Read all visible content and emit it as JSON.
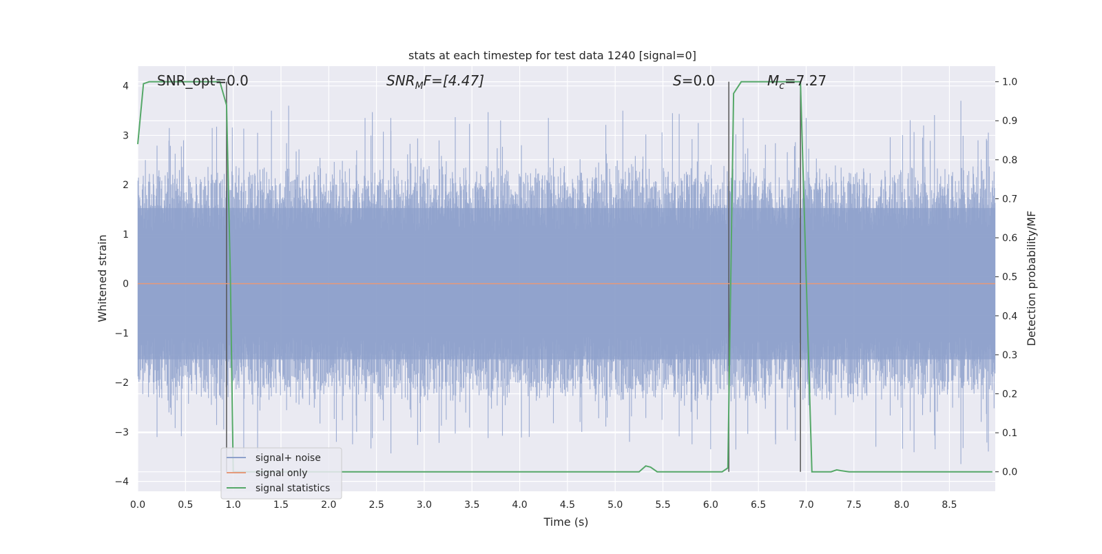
{
  "chart_data": {
    "type": "line",
    "title": "stats at each timestep for test data 1240 [signal=0]",
    "xlabel": "Time (s)",
    "ylabel_left": "Whitened strain",
    "ylabel_right": "Detection probability/MF",
    "xlim": [
      0.0,
      8.98
    ],
    "ylim_left": [
      -4.2,
      4.4
    ],
    "ylim_right": [
      -0.05,
      1.04
    ],
    "x_ticks": [
      "0.0",
      "0.5",
      "1.0",
      "1.5",
      "2.0",
      "2.5",
      "3.0",
      "3.5",
      "4.0",
      "4.5",
      "5.0",
      "5.5",
      "6.0",
      "6.5",
      "7.0",
      "7.5",
      "8.0",
      "8.5"
    ],
    "x_tick_values": [
      0,
      0.5,
      1,
      1.5,
      2,
      2.5,
      3,
      3.5,
      4,
      4.5,
      5,
      5.5,
      6,
      6.5,
      7,
      7.5,
      8,
      8.5
    ],
    "y_left_ticks": [
      "4",
      "3",
      "2",
      "1",
      "0",
      "−1",
      "−2",
      "−3",
      "−4"
    ],
    "y_left_tick_values": [
      4,
      3,
      2,
      1,
      0,
      -1,
      -2,
      -3,
      -4
    ],
    "y_right_ticks": [
      "1.0",
      "0.9",
      "0.8",
      "0.7",
      "0.6",
      "0.5",
      "0.4",
      "0.3",
      "0.2",
      "0.1",
      "0.0"
    ],
    "y_right_tick_values": [
      1.0,
      0.9,
      0.8,
      0.7,
      0.6,
      0.5,
      0.4,
      0.3,
      0.2,
      0.1,
      0.0
    ],
    "grid": true,
    "legend_position": "lower-left",
    "annotations": {
      "snr_opt": "SNR_opt=0.0",
      "snr_mf_main": "SNR",
      "snr_mf_sub": "M",
      "snr_mf_rest": "F=[4.47]",
      "s_main": "S",
      "s_rest": "=0.0",
      "mc_main": "M",
      "mc_sub": "c",
      "mc_rest": "=7.27"
    },
    "series": [
      {
        "name": "signal+ noise",
        "color": "#8da0cb",
        "axis": "left",
        "kind": "noise",
        "envelope": {
          "typical_abs": 1.7,
          "peak_abs": 3.7
        },
        "peaks_upper": [
          [
            0.08,
            2.5
          ],
          [
            0.33,
            3.15
          ],
          [
            0.48,
            2.9
          ],
          [
            0.78,
            3.15
          ],
          [
            1.4,
            3.5
          ],
          [
            1.58,
            3.6
          ],
          [
            2.38,
            3.35
          ],
          [
            2.65,
            3.35
          ],
          [
            3.8,
            3.3
          ],
          [
            4.3,
            3.35
          ],
          [
            5.08,
            3.5
          ],
          [
            5.6,
            3.45
          ],
          [
            5.87,
            3.25
          ],
          [
            6.34,
            3.35
          ],
          [
            7.0,
            3.35
          ],
          [
            8.23,
            3.2
          ],
          [
            8.62,
            3.7
          ],
          [
            8.8,
            2.9
          ]
        ],
        "peaks_lower": [
          [
            0.35,
            -2.65
          ],
          [
            0.9,
            -2.95
          ],
          [
            2.08,
            -3.2
          ],
          [
            2.25,
            -3.25
          ],
          [
            2.96,
            -3.0
          ],
          [
            4.1,
            -3.1
          ],
          [
            4.65,
            -3.0
          ],
          [
            5.15,
            -3.2
          ],
          [
            6.0,
            -3.35
          ],
          [
            6.68,
            -3.25
          ],
          [
            7.73,
            -3.3
          ],
          [
            8.35,
            -3.35
          ],
          [
            8.62,
            -3.65
          ]
        ]
      },
      {
        "name": "signal only",
        "color": "#e5997a",
        "axis": "left",
        "x": [
          0.0,
          8.98
        ],
        "y": [
          0.0,
          0.0
        ]
      },
      {
        "name": "signal statistics",
        "color": "#55a868",
        "axis": "right",
        "x": [
          0.0,
          0.06,
          0.12,
          0.86,
          0.93,
          0.97,
          1.0,
          5.25,
          5.32,
          5.37,
          5.44,
          6.12,
          6.18,
          6.24,
          6.32,
          6.94,
          7.06,
          7.26,
          7.32,
          7.36,
          7.45,
          8.95
        ],
        "y": [
          0.84,
          0.995,
          1.0,
          1.0,
          0.94,
          0.5,
          0.0,
          0.0,
          0.015,
          0.012,
          0.0,
          0.0,
          0.01,
          0.97,
          1.0,
          1.0,
          0.0,
          0.0,
          0.005,
          0.003,
          0.0,
          0.0
        ]
      }
    ],
    "vertical_markers_x": [
      0.93,
      6.19,
      6.94
    ]
  }
}
